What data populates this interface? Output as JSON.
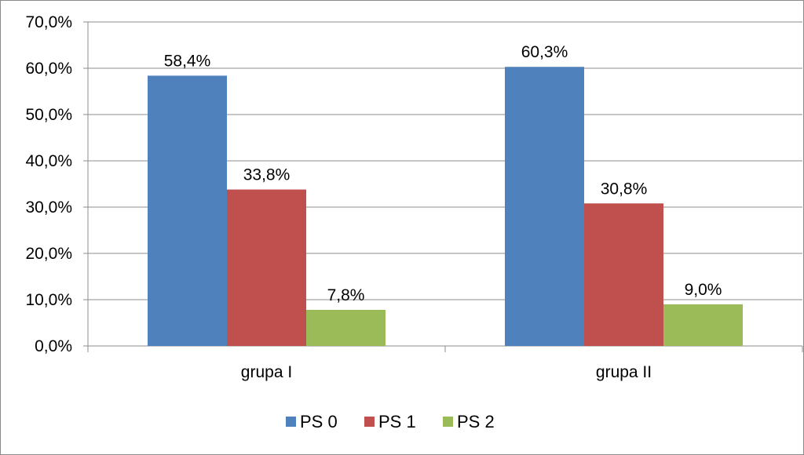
{
  "chart_data": {
    "type": "bar",
    "categories": [
      "grupa I",
      "grupa II"
    ],
    "series": [
      {
        "name": "PS 0",
        "color": "#4F81BD",
        "values": [
          58.4,
          60.3
        ],
        "labels": [
          "58,4%",
          "60,3%"
        ]
      },
      {
        "name": "PS 1",
        "color": "#C0504D",
        "values": [
          33.8,
          30.8
        ],
        "labels": [
          "33,8%",
          "30,8%"
        ]
      },
      {
        "name": "PS 2",
        "color": "#9BBB59",
        "values": [
          7.8,
          9.0
        ],
        "labels": [
          "7,8%",
          "9,0%"
        ]
      }
    ],
    "ylim": [
      0,
      70
    ],
    "yticks": [
      {
        "value": 0,
        "label": "0,0%"
      },
      {
        "value": 10,
        "label": "10,0%"
      },
      {
        "value": 20,
        "label": "20,0%"
      },
      {
        "value": 30,
        "label": "30,0%"
      },
      {
        "value": 40,
        "label": "40,0%"
      },
      {
        "value": 50,
        "label": "50,0%"
      },
      {
        "value": 60,
        "label": "60,0%"
      },
      {
        "value": 70,
        "label": "70,0%"
      }
    ],
    "grid": true,
    "legend_position": "bottom"
  }
}
